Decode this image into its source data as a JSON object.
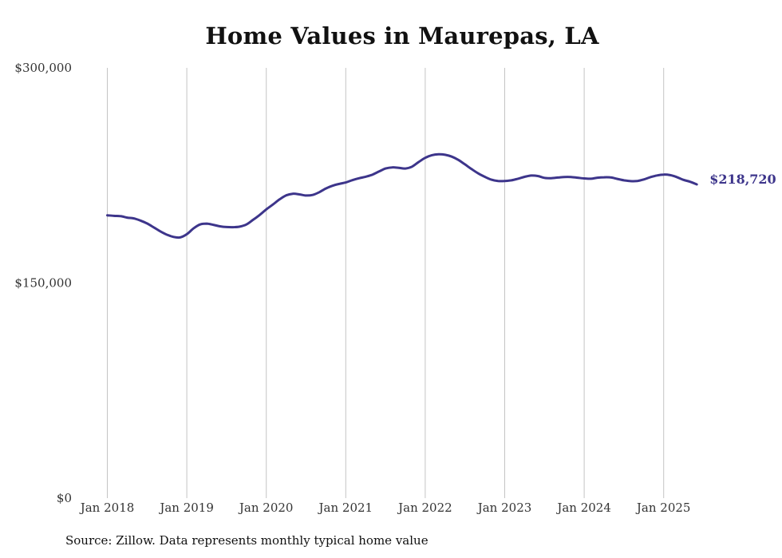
{
  "colors": {
    "line": "#3d358b",
    "grid": "#c4c4c4",
    "end_label": "#3d358b"
  },
  "chart_data": {
    "type": "line",
    "title": "Home Values in Maurepas, LA",
    "xlabel": "",
    "ylabel": "",
    "grid": "vertical",
    "legend": "none",
    "ylim": [
      0,
      300000
    ],
    "y_ticks": [
      {
        "value": 0,
        "label": "$0"
      },
      {
        "value": 150000,
        "label": "$150,000"
      },
      {
        "value": 300000,
        "label": "$300,000"
      }
    ],
    "x_ticks": [
      {
        "value": "2018-01",
        "label": "Jan 2018"
      },
      {
        "value": "2019-01",
        "label": "Jan 2019"
      },
      {
        "value": "2020-01",
        "label": "Jan 2020"
      },
      {
        "value": "2021-01",
        "label": "Jan 2021"
      },
      {
        "value": "2022-01",
        "label": "Jan 2022"
      },
      {
        "value": "2023-01",
        "label": "Jan 2023"
      },
      {
        "value": "2024-01",
        "label": "Jan 2024"
      },
      {
        "value": "2025-01",
        "label": "Jan 2025"
      }
    ],
    "series": [
      {
        "points": [
          [
            "2018-01",
            197200
          ],
          [
            "2018-02",
            196800
          ],
          [
            "2018-03",
            196600
          ],
          [
            "2018-04",
            195600
          ],
          [
            "2018-05",
            195000
          ],
          [
            "2018-06",
            193500
          ],
          [
            "2018-07",
            191500
          ],
          [
            "2018-08",
            188800
          ],
          [
            "2018-09",
            186000
          ],
          [
            "2018-10",
            183700
          ],
          [
            "2018-11",
            182100
          ],
          [
            "2018-12",
            181800
          ],
          [
            "2019-01",
            184000
          ],
          [
            "2019-02",
            188000
          ],
          [
            "2019-03",
            190800
          ],
          [
            "2019-04",
            191400
          ],
          [
            "2019-05",
            190600
          ],
          [
            "2019-06",
            189500
          ],
          [
            "2019-07",
            189000
          ],
          [
            "2019-08",
            188900
          ],
          [
            "2019-09",
            189300
          ],
          [
            "2019-10",
            190800
          ],
          [
            "2019-11",
            194000
          ],
          [
            "2019-12",
            197400
          ],
          [
            "2020-01",
            201300
          ],
          [
            "2020-02",
            204700
          ],
          [
            "2020-03",
            208300
          ],
          [
            "2020-04",
            211100
          ],
          [
            "2020-05",
            212200
          ],
          [
            "2020-06",
            211800
          ],
          [
            "2020-07",
            211000
          ],
          [
            "2020-08",
            211400
          ],
          [
            "2020-09",
            213300
          ],
          [
            "2020-10",
            215900
          ],
          [
            "2020-11",
            217800
          ],
          [
            "2020-12",
            219100
          ],
          [
            "2021-01",
            220100
          ],
          [
            "2021-02",
            221700
          ],
          [
            "2021-03",
            223000
          ],
          [
            "2021-04",
            224100
          ],
          [
            "2021-05",
            225500
          ],
          [
            "2021-06",
            227700
          ],
          [
            "2021-07",
            229800
          ],
          [
            "2021-08",
            230600
          ],
          [
            "2021-09",
            230300
          ],
          [
            "2021-10",
            229800
          ],
          [
            "2021-11",
            231100
          ],
          [
            "2021-12",
            234300
          ],
          [
            "2022-01",
            237300
          ],
          [
            "2022-02",
            239100
          ],
          [
            "2022-03",
            239700
          ],
          [
            "2022-04",
            239400
          ],
          [
            "2022-05",
            238100
          ],
          [
            "2022-06",
            235800
          ],
          [
            "2022-07",
            232700
          ],
          [
            "2022-08",
            229400
          ],
          [
            "2022-09",
            226400
          ],
          [
            "2022-10",
            224000
          ],
          [
            "2022-11",
            222000
          ],
          [
            "2022-12",
            221100
          ],
          [
            "2023-01",
            221100
          ],
          [
            "2023-02",
            221600
          ],
          [
            "2023-03",
            222700
          ],
          [
            "2023-04",
            224000
          ],
          [
            "2023-05",
            224900
          ],
          [
            "2023-06",
            224600
          ],
          [
            "2023-07",
            223300
          ],
          [
            "2023-08",
            223100
          ],
          [
            "2023-09",
            223500
          ],
          [
            "2023-10",
            223900
          ],
          [
            "2023-11",
            223900
          ],
          [
            "2023-12",
            223400
          ],
          [
            "2024-01",
            222900
          ],
          [
            "2024-02",
            222700
          ],
          [
            "2024-03",
            223400
          ],
          [
            "2024-04",
            223700
          ],
          [
            "2024-05",
            223600
          ],
          [
            "2024-06",
            222600
          ],
          [
            "2024-07",
            221600
          ],
          [
            "2024-08",
            221000
          ],
          [
            "2024-09",
            221100
          ],
          [
            "2024-10",
            222200
          ],
          [
            "2024-11",
            223800
          ],
          [
            "2024-12",
            225000
          ],
          [
            "2025-01",
            225600
          ],
          [
            "2025-02",
            225200
          ],
          [
            "2025-03",
            223800
          ],
          [
            "2025-04",
            221900
          ],
          [
            "2025-05",
            220600
          ],
          [
            "2025-06",
            218720
          ]
        ]
      }
    ],
    "end_label": "$218,720",
    "source": "Source: Zillow. Data represents monthly typical home value"
  }
}
